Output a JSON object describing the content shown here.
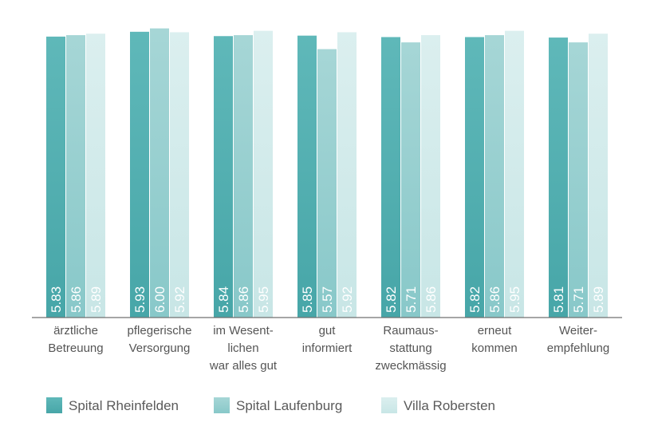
{
  "chart_data": {
    "type": "bar",
    "categories": [
      [
        "ärztliche",
        "Betreuung"
      ],
      [
        "pflegerische",
        "Versorgung"
      ],
      [
        "im Wesent-",
        "lichen",
        "war alles gut"
      ],
      [
        "gut",
        "informiert"
      ],
      [
        "Raumaus-",
        "stattung",
        "zweckmässig"
      ],
      [
        "erneut",
        "kommen"
      ],
      [
        "Weiter-",
        "empfehlung"
      ]
    ],
    "series": [
      {
        "name": "Spital Rheinfelden",
        "values": [
          5.83,
          5.93,
          5.84,
          5.85,
          5.82,
          5.82,
          5.81
        ],
        "labels": [
          "5.83",
          "5.93",
          "5.84",
          "5.85",
          "5.82",
          "5.82",
          "5.81"
        ],
        "color_top": "#5fb8b9",
        "color_bottom": "#47a6a8"
      },
      {
        "name": "Spital Laufenburg",
        "values": [
          5.86,
          6.0,
          5.86,
          5.57,
          5.71,
          5.86,
          5.71
        ],
        "labels": [
          "5.86",
          "6.00",
          "5.86",
          "5.57",
          "5.71",
          "5.86",
          "5.71"
        ],
        "color_top": "#a6d6d6",
        "color_bottom": "#88c8c9"
      },
      {
        "name": "Villa Robersten",
        "values": [
          5.89,
          5.92,
          5.95,
          5.92,
          5.86,
          5.95,
          5.89
        ],
        "labels": [
          "5.89",
          "5.92",
          "5.95",
          "5.92",
          "5.86",
          "5.95",
          "5.89"
        ],
        "color_top": "#dbefef",
        "color_bottom": "#c8e6e6"
      }
    ],
    "title": "",
    "xlabel": "",
    "ylabel": "",
    "grid": false,
    "legend_position": "bottom-left"
  }
}
